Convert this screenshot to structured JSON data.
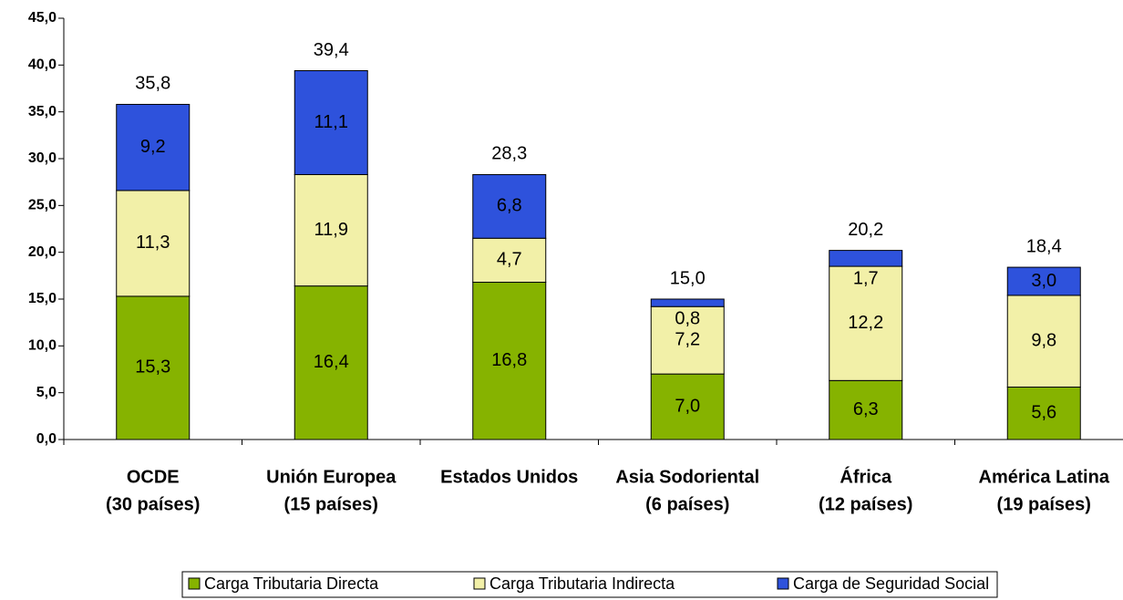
{
  "chart_data": {
    "type": "stacked_bar",
    "categories": [
      [
        "OCDE",
        "(30 países)"
      ],
      [
        "Unión Europea",
        "(15 países)"
      ],
      [
        "Estados Unidos"
      ],
      [
        "Asia Sodoriental",
        "(6 países)"
      ],
      [
        "África",
        "(12 países)"
      ],
      [
        "América Latina",
        "(19 países)"
      ]
    ],
    "series": [
      {
        "name": "Carga Tributaria Directa",
        "color": "#86b300",
        "values": [
          15.3,
          16.4,
          16.8,
          7.0,
          6.3,
          5.6
        ],
        "value_labels": [
          "15,3",
          "16,4",
          "16,8",
          "7,0",
          "6,3",
          "5,6"
        ]
      },
      {
        "name": "Carga Tributaria Indirecta",
        "color": "#f2f0a8",
        "values": [
          11.3,
          11.9,
          4.7,
          7.2,
          12.2,
          9.8
        ],
        "value_labels": [
          "11,3",
          "11,9",
          "4,7",
          "7,2",
          "12,2",
          "9,8"
        ]
      },
      {
        "name": "Carga de Seguridad Social",
        "color": "#2e52dc",
        "values": [
          9.2,
          11.1,
          6.8,
          0.8,
          1.7,
          3.0
        ],
        "value_labels": [
          "9,2",
          "11,1",
          "6,8",
          "0,8",
          "1,7",
          "3,0"
        ]
      }
    ],
    "totals": [
      35.8,
      39.4,
      28.3,
      15.0,
      20.2,
      18.4
    ],
    "total_labels": [
      "35,8",
      "39,4",
      "28,3",
      "15,0",
      "20,2",
      "18,4"
    ],
    "ylim": [
      0,
      45
    ],
    "yticks": [
      {
        "value": 0,
        "label": "0,0"
      },
      {
        "value": 5,
        "label": "5,0"
      },
      {
        "value": 10,
        "label": "10,0"
      },
      {
        "value": 15,
        "label": "15,0"
      },
      {
        "value": 20,
        "label": "20,0"
      },
      {
        "value": 25,
        "label": "25,0"
      },
      {
        "value": 30,
        "label": "30,0"
      },
      {
        "value": 35,
        "label": "35,0"
      },
      {
        "value": 40,
        "label": "40,0"
      },
      {
        "value": 45,
        "label": "45,0"
      }
    ],
    "legend": "bottom"
  }
}
